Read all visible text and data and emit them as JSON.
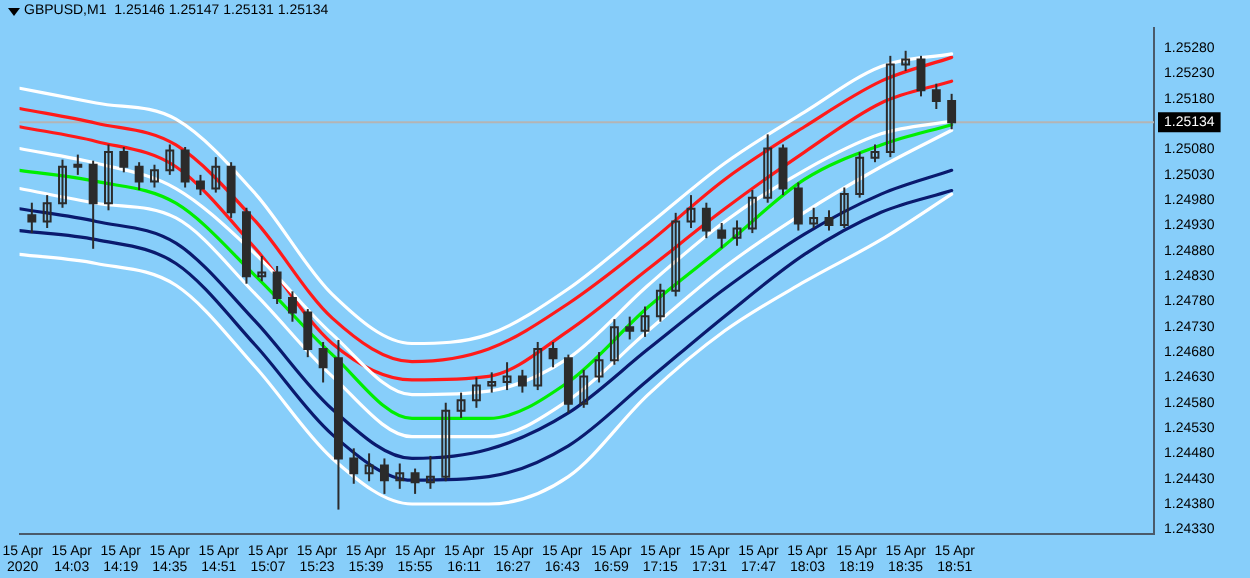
{
  "chart_data": {
    "type": "candlestick",
    "title": "GBPUSD,M1  1.25146 1.25147 1.25131 1.25134",
    "color": "#2b2b2b",
    "marker": "none",
    "line_style": "solid",
    "legend": false,
    "x": [
      "2020-04-15T13:50",
      "2020-04-15T13:55",
      "2020-04-15T14:00",
      "2020-04-15T14:05",
      "2020-04-15T14:10",
      "2020-04-15T14:15",
      "2020-04-15T14:20",
      "2020-04-15T14:25",
      "2020-04-15T14:30",
      "2020-04-15T14:35",
      "2020-04-15T14:40",
      "2020-04-15T14:45",
      "2020-04-15T14:50",
      "2020-04-15T14:55",
      "2020-04-15T15:00",
      "2020-04-15T15:05",
      "2020-04-15T15:10",
      "2020-04-15T15:15",
      "2020-04-15T15:20",
      "2020-04-15T15:25",
      "2020-04-15T15:30",
      "2020-04-15T15:35",
      "2020-04-15T15:40",
      "2020-04-15T15:45",
      "2020-04-15T15:50",
      "2020-04-15T15:55",
      "2020-04-15T16:00",
      "2020-04-15T16:05",
      "2020-04-15T16:10",
      "2020-04-15T16:15",
      "2020-04-15T16:20",
      "2020-04-15T16:25",
      "2020-04-15T16:30",
      "2020-04-15T16:35",
      "2020-04-15T16:40",
      "2020-04-15T16:45",
      "2020-04-15T16:50",
      "2020-04-15T16:55",
      "2020-04-15T17:00",
      "2020-04-15T17:05",
      "2020-04-15T17:10",
      "2020-04-15T17:15",
      "2020-04-15T17:20",
      "2020-04-15T17:25",
      "2020-04-15T17:30",
      "2020-04-15T17:35",
      "2020-04-15T17:40",
      "2020-04-15T17:45",
      "2020-04-15T17:50",
      "2020-04-15T17:55",
      "2020-04-15T18:00",
      "2020-04-15T18:05",
      "2020-04-15T18:10",
      "2020-04-15T18:15",
      "2020-04-15T18:20",
      "2020-04-15T18:25",
      "2020-04-15T18:30",
      "2020-04-15T18:35",
      "2020-04-15T18:40",
      "2020-04-15T18:45",
      "2020-04-15T18:50"
    ],
    "ohlc": [
      [
        1.2495,
        1.24975,
        1.24915,
        1.24938
      ],
      [
        1.24938,
        1.2499,
        1.24925,
        1.24974
      ],
      [
        1.24974,
        1.2506,
        1.24965,
        1.25046
      ],
      [
        1.25046,
        1.2507,
        1.2503,
        1.2505
      ],
      [
        1.2505,
        1.25058,
        1.24884,
        1.24974
      ],
      [
        1.24974,
        1.2509,
        1.2496,
        1.25075
      ],
      [
        1.25075,
        1.25085,
        1.25035,
        1.25046
      ],
      [
        1.25046,
        1.25055,
        1.25,
        1.25017
      ],
      [
        1.25017,
        1.2505,
        1.25005,
        1.25039
      ],
      [
        1.25039,
        1.2509,
        1.2503,
        1.25078
      ],
      [
        1.25078,
        1.25085,
        1.25005,
        1.25017
      ],
      [
        1.25017,
        1.2503,
        1.2499,
        1.25003
      ],
      [
        1.25003,
        1.25065,
        1.24995,
        1.25046
      ],
      [
        1.25046,
        1.25055,
        1.24945,
        1.24956
      ],
      [
        1.24956,
        1.24965,
        1.24815,
        1.2483
      ],
      [
        1.2483,
        1.2487,
        1.2482,
        1.24837
      ],
      [
        1.24837,
        1.2485,
        1.24775,
        1.24787
      ],
      [
        1.24787,
        1.248,
        1.2474,
        1.24758
      ],
      [
        1.24758,
        1.24765,
        1.2467,
        1.24686
      ],
      [
        1.24686,
        1.247,
        1.2462,
        1.2465
      ],
      [
        1.24668,
        1.24704,
        1.24369,
        1.2447
      ],
      [
        1.2447,
        1.2449,
        1.2442,
        1.24441
      ],
      [
        1.24441,
        1.2448,
        1.24425,
        1.24456
      ],
      [
        1.24456,
        1.2447,
        1.244,
        1.24427
      ],
      [
        1.24427,
        1.2446,
        1.2441,
        1.24441
      ],
      [
        1.24441,
        1.2445,
        1.244,
        1.24423
      ],
      [
        1.24423,
        1.24475,
        1.2441,
        1.24434
      ],
      [
        1.24434,
        1.2458,
        1.24425,
        1.24564
      ],
      [
        1.24564,
        1.246,
        1.2455,
        1.24585
      ],
      [
        1.24585,
        1.2463,
        1.2457,
        1.24614
      ],
      [
        1.24614,
        1.2464,
        1.246,
        1.24621
      ],
      [
        1.24621,
        1.2466,
        1.24605,
        1.24632
      ],
      [
        1.24632,
        1.24645,
        1.246,
        1.24614
      ],
      [
        1.24614,
        1.247,
        1.24605,
        1.24686
      ],
      [
        1.24686,
        1.247,
        1.2465,
        1.24668
      ],
      [
        1.24668,
        1.24675,
        1.2456,
        1.24578
      ],
      [
        1.24578,
        1.24645,
        1.2457,
        1.24632
      ],
      [
        1.24632,
        1.2468,
        1.2462,
        1.24664
      ],
      [
        1.24664,
        1.24745,
        1.24655,
        1.24729
      ],
      [
        1.24729,
        1.2475,
        1.24705,
        1.24722
      ],
      [
        1.24722,
        1.2477,
        1.2471,
        1.24751
      ],
      [
        1.24751,
        1.24815,
        1.2474,
        1.24801
      ],
      [
        1.24801,
        1.24955,
        1.2479,
        1.24938
      ],
      [
        1.24938,
        1.2499,
        1.24925,
        1.24963
      ],
      [
        1.24963,
        1.24975,
        1.24905,
        1.2492
      ],
      [
        1.2492,
        1.24935,
        1.24885,
        1.24906
      ],
      [
        1.24906,
        1.2494,
        1.2489,
        1.24924
      ],
      [
        1.24924,
        1.25,
        1.24915,
        1.24985
      ],
      [
        1.24985,
        1.2511,
        1.24975,
        1.25082
      ],
      [
        1.25082,
        1.2509,
        1.2499,
        1.25003
      ],
      [
        1.25003,
        1.25015,
        1.2492,
        1.24934
      ],
      [
        1.24934,
        1.24965,
        1.24925,
        1.24945
      ],
      [
        1.24945,
        1.2496,
        1.2492,
        1.24931
      ],
      [
        1.24931,
        1.25005,
        1.24925,
        1.24992
      ],
      [
        1.24992,
        1.25075,
        1.24985,
        1.25064
      ],
      [
        1.25064,
        1.2509,
        1.25055,
        1.25075
      ],
      [
        1.25075,
        1.25265,
        1.25065,
        1.25248
      ],
      [
        1.25248,
        1.25275,
        1.25235,
        1.25258
      ],
      [
        1.25258,
        1.25265,
        1.25185,
        1.25197
      ],
      [
        1.25197,
        1.2521,
        1.2516,
        1.25176
      ],
      [
        1.25176,
        1.2519,
        1.2512,
        1.25134
      ]
    ],
    "series": [
      {
        "type": "line",
        "color": "#ffffff",
        "x": [
          "2020-04-15T13:46",
          "2020-04-15T14:11",
          "2020-04-15T14:37",
          "2020-04-15T15:03",
          "2020-04-15T15:28",
          "2020-04-15T15:54",
          "2020-04-15T16:19",
          "2020-04-15T16:45",
          "2020-04-15T17:11",
          "2020-04-15T17:36",
          "2020-04-15T18:02",
          "2020-04-15T18:27",
          "2020-04-15T18:50"
        ],
        "values": [
          1.25201,
          1.25172,
          1.2514,
          1.24992,
          1.24794,
          1.24697,
          1.24715,
          1.24805,
          1.24931,
          1.25053,
          1.25154,
          1.25244,
          1.25269
        ]
      },
      {
        "type": "line",
        "color": "#ffffff",
        "x": [
          "2020-04-15T13:46",
          "2020-04-15T14:11",
          "2020-04-15T14:37",
          "2020-04-15T15:03",
          "2020-04-15T15:28",
          "2020-04-15T15:54",
          "2020-04-15T16:19",
          "2020-04-15T16:45",
          "2020-04-15T17:11",
          "2020-04-15T17:36",
          "2020-04-15T18:02",
          "2020-04-15T18:27",
          "2020-04-15T18:50"
        ],
        "values": [
          1.25082,
          1.25053,
          1.25003,
          1.24873,
          1.24715,
          1.24596,
          1.24603,
          1.24668,
          1.24812,
          1.24938,
          1.25039,
          1.25111,
          1.25136
        ]
      },
      {
        "type": "line",
        "color": "#ffffff",
        "x": [
          "2020-04-15T13:46",
          "2020-04-15T14:11",
          "2020-04-15T14:37",
          "2020-04-15T15:03",
          "2020-04-15T15:28",
          "2020-04-15T15:54",
          "2020-04-15T16:19",
          "2020-04-15T16:45",
          "2020-04-15T17:11",
          "2020-04-15T17:36",
          "2020-04-15T18:02",
          "2020-04-15T18:27",
          "2020-04-15T18:50"
        ],
        "values": [
          1.25003,
          1.24974,
          1.24945,
          1.24794,
          1.24632,
          1.24513,
          1.24513,
          1.24585,
          1.24722,
          1.24848,
          1.24956,
          1.25046,
          1.25118
        ]
      },
      {
        "type": "line",
        "color": "#ffffff",
        "x": [
          "2020-04-15T13:46",
          "2020-04-15T14:11",
          "2020-04-15T14:37",
          "2020-04-15T15:03",
          "2020-04-15T15:28",
          "2020-04-15T15:54",
          "2020-04-15T16:19",
          "2020-04-15T16:45",
          "2020-04-15T17:11",
          "2020-04-15T17:36",
          "2020-04-15T18:02",
          "2020-04-15T18:27",
          "2020-04-15T18:50"
        ],
        "values": [
          1.24873,
          1.24855,
          1.24812,
          1.2465,
          1.2447,
          1.2438,
          1.2438,
          1.24434,
          1.24596,
          1.24722,
          1.24819,
          1.24902,
          1.24992
        ]
      },
      {
        "type": "line",
        "color": "#ff1a1a",
        "x": [
          "2020-04-15T13:46",
          "2020-04-15T14:11",
          "2020-04-15T14:37",
          "2020-04-15T15:03",
          "2020-04-15T15:28",
          "2020-04-15T15:54",
          "2020-04-15T16:19",
          "2020-04-15T16:45",
          "2020-04-15T17:11",
          "2020-04-15T17:36",
          "2020-04-15T18:02",
          "2020-04-15T18:27",
          "2020-04-15T18:50"
        ],
        "values": [
          1.25161,
          1.25132,
          1.25089,
          1.24938,
          1.24747,
          1.24661,
          1.24686,
          1.24776,
          1.24895,
          1.25021,
          1.25125,
          1.25215,
          1.25262
        ]
      },
      {
        "type": "line",
        "color": "#ff1a1a",
        "x": [
          "2020-04-15T13:46",
          "2020-04-15T14:11",
          "2020-04-15T14:37",
          "2020-04-15T15:03",
          "2020-04-15T15:28",
          "2020-04-15T15:54",
          "2020-04-15T16:19",
          "2020-04-15T16:45",
          "2020-04-15T17:11",
          "2020-04-15T17:36",
          "2020-04-15T18:02",
          "2020-04-15T18:27",
          "2020-04-15T18:50"
        ],
        "values": [
          1.25125,
          1.25096,
          1.25046,
          1.24884,
          1.24697,
          1.24625,
          1.24632,
          1.24722,
          1.24844,
          1.24963,
          1.25075,
          1.25172,
          1.25215
        ]
      },
      {
        "type": "line",
        "color": "#00ee00",
        "x": [
          "2020-04-15T13:46",
          "2020-04-15T14:11",
          "2020-04-15T14:37",
          "2020-04-15T15:03",
          "2020-04-15T15:28",
          "2020-04-15T15:54",
          "2020-04-15T16:19",
          "2020-04-15T16:45",
          "2020-04-15T17:11",
          "2020-04-15T17:36",
          "2020-04-15T18:02",
          "2020-04-15T18:27",
          "2020-04-15T18:50"
        ],
        "values": [
          1.25039,
          1.25017,
          1.24974,
          1.2483,
          1.24675,
          1.24549,
          1.24549,
          1.24621,
          1.24769,
          1.24891,
          1.25021,
          1.25089,
          1.25129
        ]
      },
      {
        "type": "line",
        "color": "#0a1a6e",
        "x": [
          "2020-04-15T13:46",
          "2020-04-15T14:11",
          "2020-04-15T14:37",
          "2020-04-15T15:03",
          "2020-04-15T15:28",
          "2020-04-15T15:54",
          "2020-04-15T16:19",
          "2020-04-15T16:45",
          "2020-04-15T17:11",
          "2020-04-15T17:36",
          "2020-04-15T18:02",
          "2020-04-15T18:27",
          "2020-04-15T18:50"
        ],
        "values": [
          1.24963,
          1.24938,
          1.24895,
          1.2474,
          1.24567,
          1.2447,
          1.24488,
          1.2456,
          1.24686,
          1.24805,
          1.24913,
          1.24992,
          1.25039
        ]
      },
      {
        "type": "line",
        "color": "#0a1a6e",
        "x": [
          "2020-04-15T13:46",
          "2020-04-15T14:11",
          "2020-04-15T14:37",
          "2020-04-15T15:03",
          "2020-04-15T15:28",
          "2020-04-15T15:54",
          "2020-04-15T16:19",
          "2020-04-15T16:45",
          "2020-04-15T17:11",
          "2020-04-15T17:36",
          "2020-04-15T18:02",
          "2020-04-15T18:27",
          "2020-04-15T18:50"
        ],
        "values": [
          1.2492,
          1.24902,
          1.24855,
          1.24693,
          1.24517,
          1.24427,
          1.24434,
          1.24495,
          1.24625,
          1.24751,
          1.24873,
          1.24956,
          1.24999
        ]
      }
    ],
    "xlim": [
      "2020-04-15T13:46",
      "2020-04-15T19:56"
    ],
    "xticks": [
      {
        "value": "2020-04-15T13:47",
        "label": "15 Apr 2020"
      },
      {
        "value": "2020-04-15T14:03",
        "label": "15 Apr 14:03"
      },
      {
        "value": "2020-04-15T14:19",
        "label": "15 Apr 14:19"
      },
      {
        "value": "2020-04-15T14:35",
        "label": "15 Apr 14:35"
      },
      {
        "value": "2020-04-15T14:51",
        "label": "15 Apr 14:51"
      },
      {
        "value": "2020-04-15T15:07",
        "label": "15 Apr 15:07"
      },
      {
        "value": "2020-04-15T15:23",
        "label": "15 Apr 15:23"
      },
      {
        "value": "2020-04-15T15:39",
        "label": "15 Apr 15:39"
      },
      {
        "value": "2020-04-15T15:55",
        "label": "15 Apr 15:55"
      },
      {
        "value": "2020-04-15T16:11",
        "label": "15 Apr 16:11"
      },
      {
        "value": "2020-04-15T16:27",
        "label": "15 Apr 16:27"
      },
      {
        "value": "2020-04-15T16:43",
        "label": "15 Apr 16:43"
      },
      {
        "value": "2020-04-15T16:59",
        "label": "15 Apr 16:59"
      },
      {
        "value": "2020-04-15T17:15",
        "label": "15 Apr 17:15"
      },
      {
        "value": "2020-04-15T17:31",
        "label": "15 Apr 17:31"
      },
      {
        "value": "2020-04-15T17:47",
        "label": "15 Apr 17:47"
      },
      {
        "value": "2020-04-15T18:03",
        "label": "15 Apr 18:03"
      },
      {
        "value": "2020-04-15T18:19",
        "label": "15 Apr 18:19"
      },
      {
        "value": "2020-04-15T18:35",
        "label": "15 Apr 18:35"
      },
      {
        "value": "2020-04-15T18:51",
        "label": "15 Apr 18:51"
      }
    ],
    "ylim": [
      1.2432,
      1.2532
    ],
    "yticks": [
      {
        "value": 1.2528,
        "label": "1.25280"
      },
      {
        "value": 1.2523,
        "label": "1.25230"
      },
      {
        "value": 1.2518,
        "label": "1.25180"
      },
      {
        "value": 1.2508,
        "label": "1.25080"
      },
      {
        "value": 1.2503,
        "label": "1.25030"
      },
      {
        "value": 1.2498,
        "label": "1.24980"
      },
      {
        "value": 1.2493,
        "label": "1.24930"
      },
      {
        "value": 1.2488,
        "label": "1.24880"
      },
      {
        "value": 1.2483,
        "label": "1.24830"
      },
      {
        "value": 1.2478,
        "label": "1.24780"
      },
      {
        "value": 1.2473,
        "label": "1.24730"
      },
      {
        "value": 1.2468,
        "label": "1.24680"
      },
      {
        "value": 1.2463,
        "label": "1.24630"
      },
      {
        "value": 1.2458,
        "label": "1.24580"
      },
      {
        "value": 1.2453,
        "label": "1.24530"
      },
      {
        "value": 1.2448,
        "label": "1.24480"
      },
      {
        "value": 1.2443,
        "label": "1.24430"
      },
      {
        "value": 1.2438,
        "label": "1.24380"
      },
      {
        "value": 1.2433,
        "label": "1.24330"
      }
    ],
    "ref_lines": [
      {
        "axis": "y",
        "value": 1.25134,
        "label": "1.25134",
        "color": "#b4b4b4"
      }
    ]
  }
}
